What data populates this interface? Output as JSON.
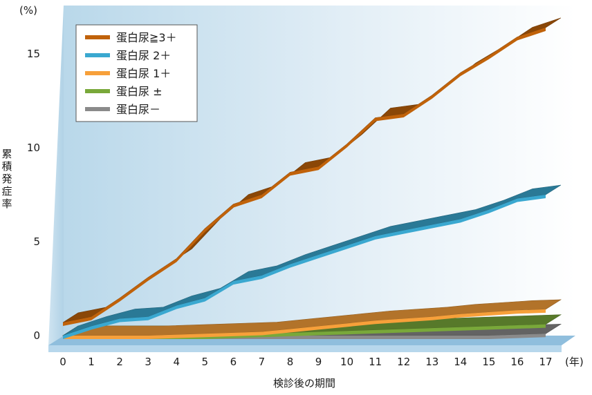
{
  "chart_data": {
    "type": "line",
    "y_unit": "(%)",
    "x_unit": "(年)",
    "xlabel": "検診後の期間",
    "ylabel": "累積発症率",
    "x": [
      0,
      1,
      2,
      3,
      4,
      5,
      6,
      7,
      8,
      9,
      10,
      11,
      12,
      13,
      14,
      15,
      16,
      17
    ],
    "x_ticks": [
      "0",
      "1",
      "2",
      "3",
      "4",
      "5",
      "6",
      "7",
      "8",
      "9",
      "10",
      "11",
      "12",
      "13",
      "14",
      "15",
      "16",
      "17"
    ],
    "y_ticks": [
      "0",
      "5",
      "10",
      "15"
    ],
    "y_tick_values": [
      0,
      5,
      10,
      15
    ],
    "ylim": [
      0,
      16.5
    ],
    "xlim": [
      0,
      17
    ],
    "grid": false,
    "legend_position": "top-left",
    "series": [
      {
        "name": "蛋白尿≧3＋",
        "color": "#c0620a",
        "values": [
          0.7,
          1.0,
          2.0,
          3.1,
          4.1,
          5.7,
          7.0,
          7.5,
          8.7,
          9.0,
          10.2,
          11.6,
          11.8,
          12.8,
          14.0,
          14.9,
          15.9,
          16.4
        ]
      },
      {
        "name": "蛋白尿 2＋",
        "color": "#3aa8d0",
        "values": [
          0.0,
          0.5,
          0.9,
          1.0,
          1.6,
          2.0,
          2.9,
          3.2,
          3.8,
          4.3,
          4.8,
          5.3,
          5.6,
          5.9,
          6.2,
          6.7,
          7.3,
          7.5
        ]
      },
      {
        "name": "蛋白尿 1＋",
        "color": "#f7a03a",
        "values": [
          0.0,
          0.0,
          0.0,
          0.0,
          0.05,
          0.1,
          0.15,
          0.2,
          0.35,
          0.5,
          0.65,
          0.8,
          0.9,
          1.0,
          1.15,
          1.25,
          1.35,
          1.4
        ]
      },
      {
        "name": "蛋白尿 ±",
        "color": "#79a83a",
        "values": [
          0.0,
          0.0,
          0.0,
          0.0,
          0.0,
          0.0,
          0.05,
          0.1,
          0.15,
          0.2,
          0.25,
          0.3,
          0.35,
          0.4,
          0.45,
          0.5,
          0.55,
          0.6
        ]
      },
      {
        "name": "蛋白尿－",
        "color": "#8a8a8a",
        "values": [
          0.0,
          0.0,
          0.0,
          0.0,
          0.0,
          0.0,
          0.0,
          0.0,
          0.0,
          0.0,
          0.0,
          0.0,
          0.0,
          0.0,
          0.0,
          0.0,
          0.05,
          0.1
        ]
      }
    ]
  }
}
